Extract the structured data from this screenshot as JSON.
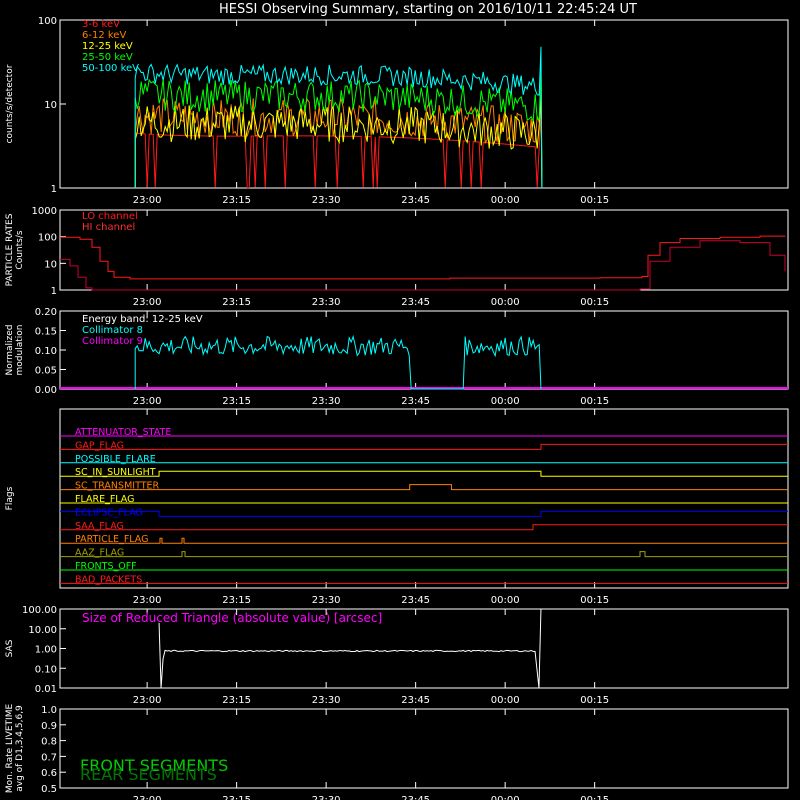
{
  "title": "HESSI Observing Summary, starting on 2016/10/11 22:45:24 UT",
  "time_ticks": [
    "23:00",
    "23:15",
    "23:30",
    "23:45",
    "00:00",
    "00:15"
  ],
  "colors": {
    "axis": "#ffffff",
    "red": "#ff1a1a",
    "orange": "#ff8000",
    "yellow": "#ffff00",
    "green": "#00ff00",
    "cyan": "#00ffff",
    "magenta": "#ff00ff",
    "blue": "#0000ff",
    "olive": "#a0a000",
    "darkred": "#c80000"
  },
  "chart_data": [
    {
      "id": "panel1",
      "type": "line",
      "ylabel": "counts/s/detector",
      "yscale": "log",
      "ylim": [
        1,
        100
      ],
      "y_tick_labels": [
        "1",
        "10",
        "100"
      ],
      "legend_placement": "top-left",
      "series": [
        {
          "name": "3-6 keV",
          "color": "#ff1a1a",
          "level": 3.0,
          "spread": 1.0
        },
        {
          "name": "6-12 keV",
          "color": "#ff8000",
          "level": 5.0,
          "spread": 1.3
        },
        {
          "name": "12-25 keV",
          "color": "#ffff00",
          "level": 4.2,
          "spread": 1.3
        },
        {
          "name": "25-50 keV",
          "color": "#00ff00",
          "level": 9.0,
          "spread": 1.25
        },
        {
          "name": "50-100 keV",
          "color": "#00ffff",
          "level": 16.0,
          "spread": 1.15
        }
      ],
      "data_window": [
        "22:58",
        "00:06"
      ]
    },
    {
      "id": "panel2",
      "type": "line",
      "ylabel": "PARTICLE RATES\nCounts/s",
      "yscale": "log",
      "ylim": [
        1,
        1000
      ],
      "y_tick_labels": [
        "1",
        "10",
        "100",
        "1000"
      ],
      "legend_placement": "top-left",
      "series": [
        {
          "name": "LO channel",
          "color": "#ff1a1a"
        },
        {
          "name": "HI channel",
          "color": "#ff3030"
        }
      ]
    },
    {
      "id": "panel3",
      "type": "line",
      "ylabel": "Normalized\nmodulation",
      "ylim": [
        0,
        0.2
      ],
      "y_tick_labels": [
        "0.00",
        "0.05",
        "0.10",
        "0.15",
        "0.20"
      ],
      "legend_placement": "top-left",
      "annotation": "Energy band: 12-25 keV",
      "series": [
        {
          "name": "Collimator 8",
          "color": "#00ffff",
          "level": 0.11
        },
        {
          "name": "Collimator 9",
          "color": "#ff00ff",
          "level": 0.0
        }
      ],
      "gap": [
        "23:44",
        "23:53"
      ]
    },
    {
      "id": "panel4",
      "type": "line",
      "ylabel": "Flags",
      "flags": [
        {
          "name": "ATTENUATOR_STATE",
          "color": "#ff00ff"
        },
        {
          "name": "GAP_FLAG",
          "color": "#ff1a1a"
        },
        {
          "name": "POSSIBLE_FLARE",
          "color": "#00ffff"
        },
        {
          "name": "SC_IN_SUNLIGHT",
          "color": "#ffff00"
        },
        {
          "name": "SC_TRANSMITTER",
          "color": "#ff8000"
        },
        {
          "name": "FLARE_FLAG",
          "color": "#ffff00"
        },
        {
          "name": "ECLIPSE_FLAG",
          "color": "#0000ff"
        },
        {
          "name": "SAA_FLAG",
          "color": "#ff1a1a"
        },
        {
          "name": "PARTICLE_FLAG",
          "color": "#ff8000"
        },
        {
          "name": "AAZ_FLAG",
          "color": "#a0a000"
        },
        {
          "name": "FRONTS_OFF",
          "color": "#00ff00"
        },
        {
          "name": "BAD_PACKETS",
          "color": "#ff1a1a"
        }
      ]
    },
    {
      "id": "panel5",
      "type": "line",
      "ylabel": "SAS",
      "yscale": "log",
      "ylim": [
        0.01,
        100
      ],
      "y_tick_labels": [
        "0.01",
        "0.10",
        "1.00",
        "10.00",
        "100.00"
      ],
      "annotation": "Size of Reduced Triangle (absolute value) [arcsec]",
      "series": [
        {
          "name": "",
          "color": "#ffffff",
          "level": 0.7
        }
      ],
      "data_window": [
        "23:02",
        "00:06"
      ]
    },
    {
      "id": "panel6",
      "type": "line",
      "ylabel": "Mon. Rate LIVETIME\navg of D1,3,4,5,6,9",
      "ylim": [
        0.5,
        1.0
      ],
      "y_tick_labels": [
        "0.5",
        "0.6",
        "0.7",
        "0.8",
        "0.9",
        "1.0"
      ],
      "labels": [
        {
          "text": "FRONT SEGMENTS",
          "color": "#00cc00"
        },
        {
          "text": "REAR SEGMENTS",
          "color": "#007700"
        }
      ]
    }
  ]
}
